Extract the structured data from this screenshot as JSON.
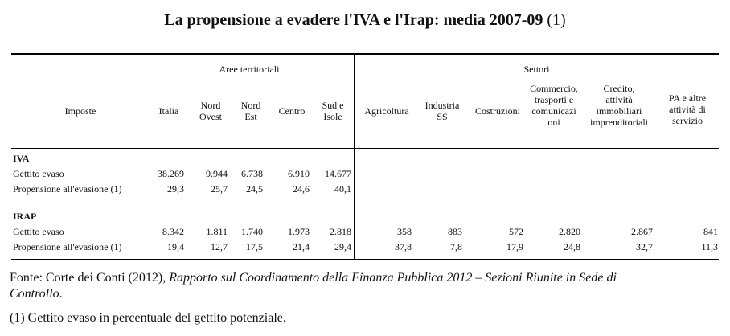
{
  "title": "La propensione a evadere l'IVA e l'Irap: media 2007-09",
  "title_note": "(1)",
  "groups": {
    "aree": "Aree territoriali",
    "settori": "Settori"
  },
  "headers": {
    "imposte": "Imposte",
    "italia": "Italia",
    "nord_ovest": [
      "Nord",
      "Ovest"
    ],
    "nord_est": [
      "Nord",
      "Est"
    ],
    "centro": "Centro",
    "sud_isole": [
      "Sud e",
      "Isole"
    ],
    "agricoltura": "Agricoltura",
    "industria": [
      "Industria",
      "SS"
    ],
    "costruzioni": "Costruzioni",
    "commercio": [
      "Commercio,",
      "trasporti e",
      "comunicazi",
      "oni"
    ],
    "credito": [
      "Credito,",
      "attività",
      "immobiliari",
      "imprenditoriali"
    ],
    "pa": [
      "PA e altre",
      "attività di",
      "servizio"
    ]
  },
  "sections": [
    {
      "name": "IVA",
      "rows": [
        {
          "label": "Gettito evaso",
          "values": [
            "38.269",
            "9.944",
            "6.738",
            "6.910",
            "14.677",
            "",
            "",
            "",
            "",
            "",
            ""
          ]
        },
        {
          "label": "Propensione all'evasione (1)",
          "values": [
            "29,3",
            "25,7",
            "24,5",
            "24,6",
            "40,1",
            "",
            "",
            "",
            "",
            "",
            ""
          ]
        }
      ]
    },
    {
      "name": "IRAP",
      "rows": [
        {
          "label": "Gettito evaso",
          "values": [
            "8.342",
            "1.811",
            "1.740",
            "1.973",
            "2.818",
            "358",
            "883",
            "572",
            "2.820",
            "2.867",
            "841"
          ]
        },
        {
          "label": "Propensione all'evasione (1)",
          "values": [
            "19,4",
            "12,7",
            "17,5",
            "21,4",
            "29,4",
            "37,8",
            "7,8",
            "17,9",
            "24,8",
            "32,7",
            "11,3"
          ]
        }
      ]
    }
  ],
  "footer": {
    "source_prefix": "Fonte: Corte dei Conti (2012), ",
    "source_italic_1": "Rapporto sul Coordinamento della Finanza Pubblica 2012 – Sezioni Riunite in Sede di",
    "source_italic_2": "Controllo",
    "source_end": ".",
    "note": "(1) Gettito evaso in percentuale del gettito potenziale."
  }
}
